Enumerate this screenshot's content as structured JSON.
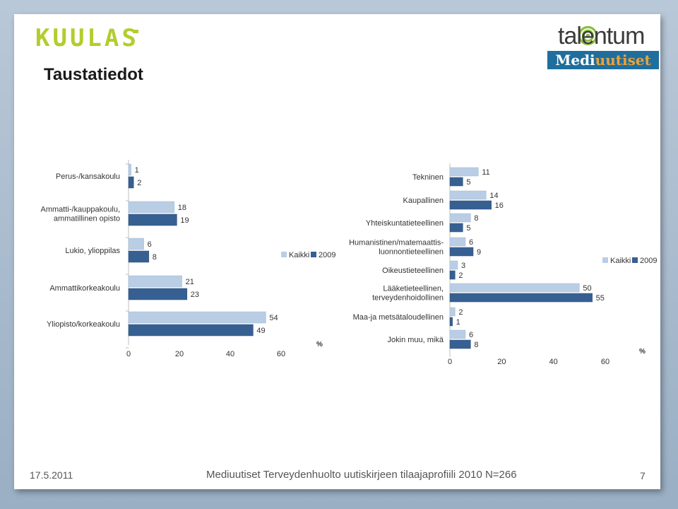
{
  "brand": {
    "left_logo": "KUULAS",
    "right_logo": "talentum",
    "right_sublogo_part1": "Medi",
    "right_sublogo_part2": "uutiset"
  },
  "title": "Taustatiedot",
  "footer": {
    "date": "17.5.2011",
    "text": "Mediuutiset Terveydenhuolto uutiskirjeen tilaajaprofiili 2010 N=266",
    "page": "7"
  },
  "colors": {
    "kaikki": "#b9cde5",
    "y2009": "#376092",
    "grid": "#d9d9d9"
  },
  "chart_data": [
    {
      "type": "bar",
      "orientation": "horizontal",
      "categories": [
        "Perus-/kansakoulu",
        "Ammatti-/kauppakoulu,\nammatillinen opisto",
        "Lukio, ylioppilas",
        "Ammattikorkeakoulu",
        "Yliopisto/korkeakoulu"
      ],
      "series": [
        {
          "name": "Kaikki",
          "values": [
            1,
            18,
            6,
            21,
            54
          ]
        },
        {
          "name": "2009",
          "values": [
            2,
            19,
            8,
            23,
            49
          ]
        }
      ],
      "xlim": [
        0,
        60
      ],
      "ticks": [
        "0",
        "20",
        "40",
        "60"
      ],
      "unit": "%",
      "legend": "right"
    },
    {
      "type": "bar",
      "orientation": "horizontal",
      "categories": [
        "Tekninen",
        "Kaupallinen",
        "Yhteiskuntatieteellinen",
        "Humanistinen/matemaattis-\nluonnontieteellinen",
        "Oikeustieteellinen",
        "Lääketieteellinen,\nterveydenhoidollinen",
        "Maa-ja metsätaloudellinen",
        "Jokin muu, mikä"
      ],
      "series": [
        {
          "name": "Kaikki",
          "values": [
            11,
            14,
            8,
            6,
            3,
            50,
            2,
            6
          ]
        },
        {
          "name": "2009",
          "values": [
            5,
            16,
            5,
            9,
            2,
            55,
            1,
            8
          ]
        }
      ],
      "xlim": [
        0,
        60
      ],
      "ticks": [
        "0",
        "20",
        "40",
        "60"
      ],
      "unit": "%",
      "legend": "right"
    }
  ]
}
